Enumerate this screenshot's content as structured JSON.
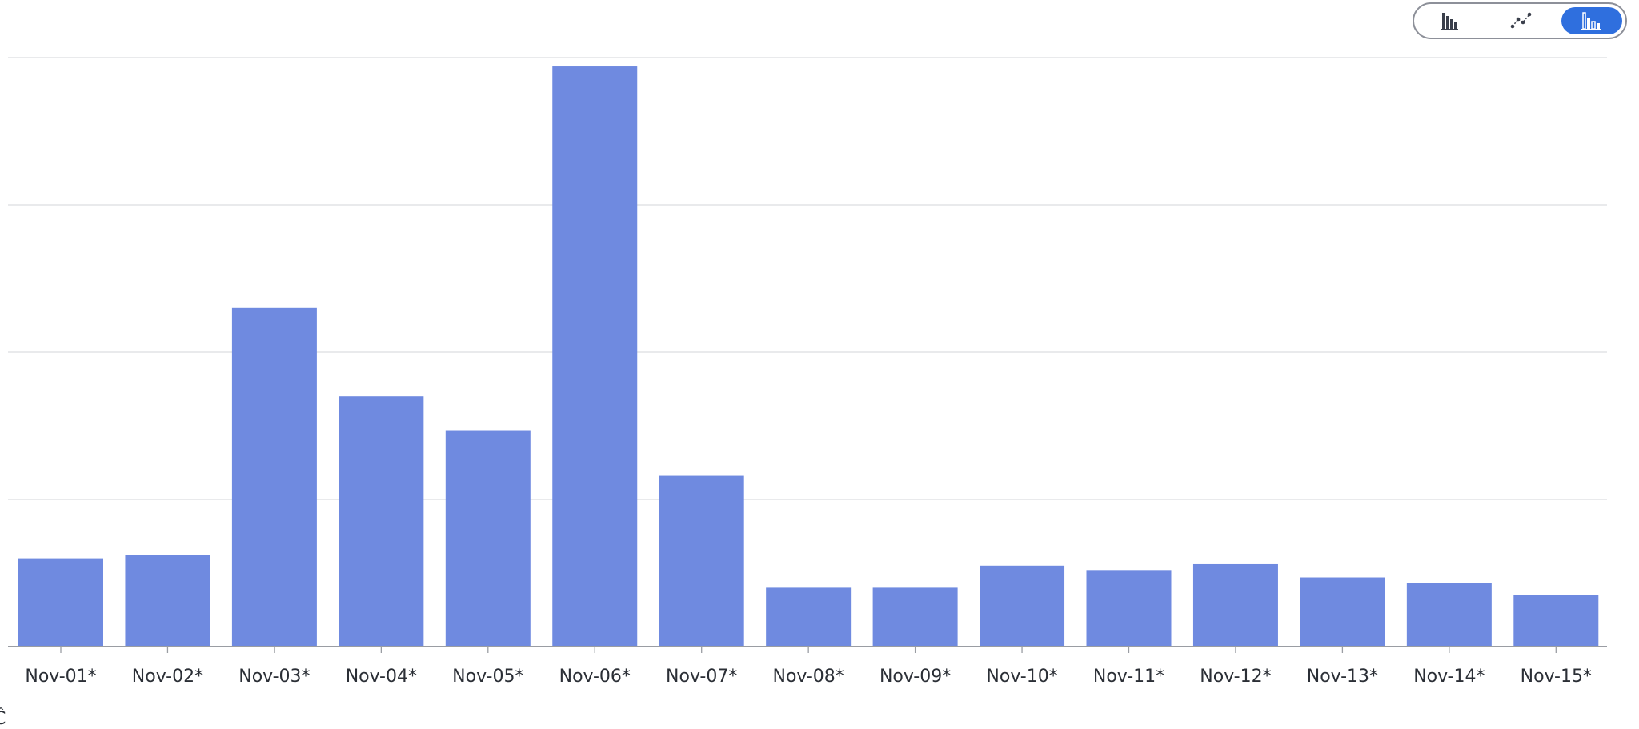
{
  "controls": {
    "chart_type_buttons": [
      {
        "name": "bar",
        "icon": "bar-chart-icon",
        "selected": false
      },
      {
        "name": "line",
        "icon": "line-chart-icon",
        "selected": false
      },
      {
        "name": "stacked",
        "icon": "stacked-bar-chart-icon",
        "selected": true
      }
    ],
    "selected_color": "#2f6fde"
  },
  "chart_data": {
    "type": "bar",
    "categories": [
      "Nov-01*",
      "Nov-02*",
      "Nov-03*",
      "Nov-04*",
      "Nov-05*",
      "Nov-06*",
      "Nov-07*",
      "Nov-08*",
      "Nov-09*",
      "Nov-10*",
      "Nov-11*",
      "Nov-12*",
      "Nov-13*",
      "Nov-14*",
      "Nov-15*"
    ],
    "values": [
      0.6,
      0.62,
      2.3,
      1.7,
      1.47,
      3.94,
      1.16,
      0.4,
      0.4,
      0.55,
      0.52,
      0.56,
      0.47,
      0.43,
      0.35
    ],
    "ylim": [
      0,
      4
    ],
    "gridlines": [
      1,
      2,
      3,
      4
    ],
    "grid": true,
    "ytick_labels_visible": false,
    "bar_color": "#6f8ae0",
    "title": "",
    "xlabel": "",
    "ylabel": ""
  },
  "footer": {
    "corner_glyph": "Ĉ"
  }
}
